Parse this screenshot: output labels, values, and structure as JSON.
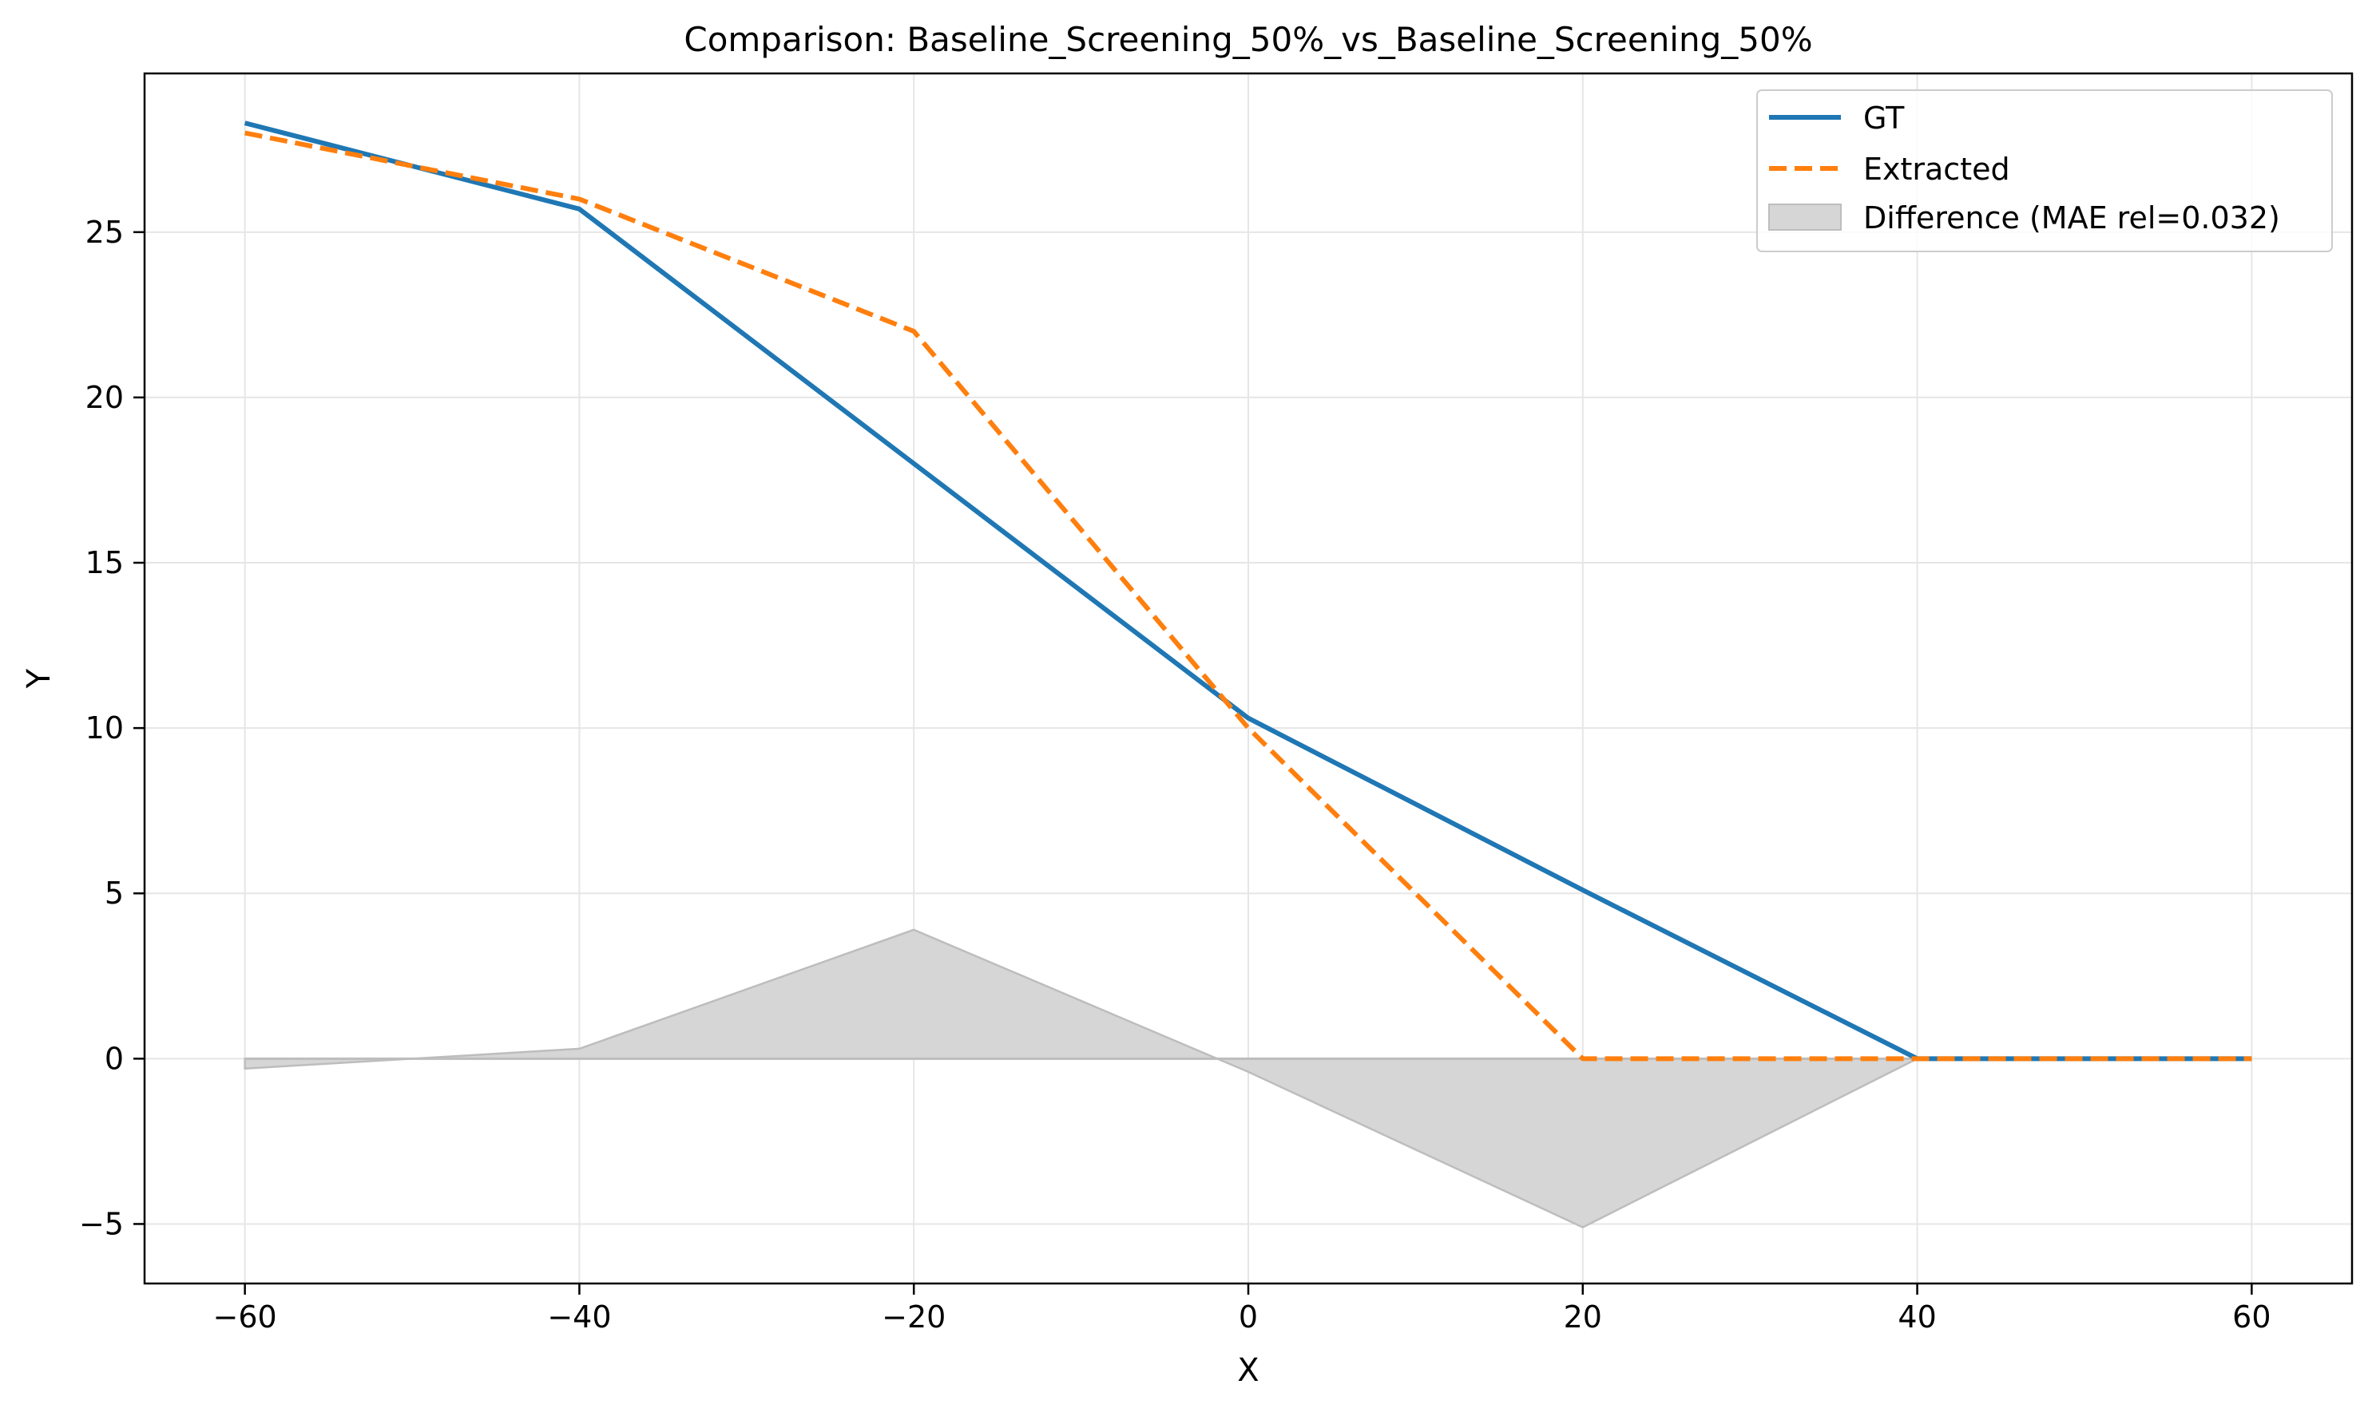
{
  "chart_data": {
    "type": "line",
    "title": "Comparison: Baseline_Screening_50%_vs_Baseline_Screening_50%",
    "xlabel": "X",
    "ylabel": "Y",
    "xlim": [
      -66,
      66
    ],
    "ylim": [
      -6.8,
      29.8
    ],
    "xticks": [
      -60,
      -40,
      -20,
      0,
      20,
      40,
      60
    ],
    "yticks": [
      -5,
      0,
      5,
      10,
      15,
      20,
      25
    ],
    "xtick_labels": [
      "−60",
      "−40",
      "−20",
      "0",
      "20",
      "40",
      "60"
    ],
    "ytick_labels": [
      "−5",
      "0",
      "5",
      "10",
      "15",
      "20",
      "25"
    ],
    "grid": true,
    "legend_position": "top-right",
    "series": [
      {
        "name": "GT",
        "style": "solid",
        "color": "#1f77b4",
        "x": [
          -60,
          -40,
          -20,
          0,
          20,
          40,
          60
        ],
        "y": [
          28.3,
          25.7,
          18.0,
          10.3,
          5.1,
          0.0,
          0.0
        ]
      },
      {
        "name": "Extracted",
        "style": "dashed",
        "color": "#ff7f0e",
        "x": [
          -60,
          -40,
          -20,
          0,
          20,
          40,
          60
        ],
        "y": [
          28.0,
          26.0,
          22.0,
          10.0,
          0.0,
          0.0,
          0.0
        ]
      }
    ],
    "difference": {
      "name": "Difference (MAE rel=0.032)",
      "color": "#d6d6d6",
      "edge_color": "#bdbdbd",
      "x": [
        -60,
        -40,
        -20,
        0,
        20,
        40,
        60
      ],
      "y": [
        -0.3,
        0.3,
        3.9,
        -0.4,
        -5.1,
        0.0,
        0.0
      ]
    }
  }
}
